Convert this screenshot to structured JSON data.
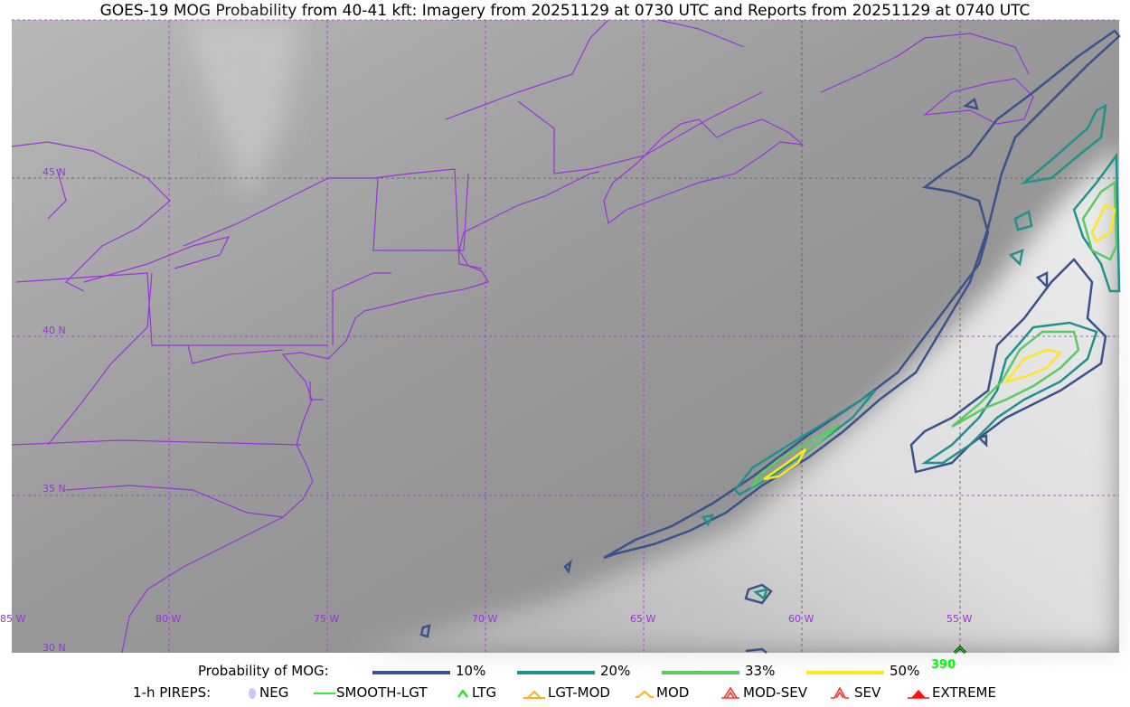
{
  "title": "GOES-19 MOG Probability from 40-41 kft: Imagery from 20251129 at 0730 UTC and Reports from 20251129 at 0740 UTC",
  "map": {
    "lat_labels": [
      "45 N",
      "40 N",
      "35 N",
      "30 N"
    ],
    "lon_labels": [
      "85 W",
      "80 W",
      "75 W",
      "70 W",
      "65 W",
      "60 W",
      "55 W"
    ],
    "border_color": "#9933dd",
    "report_value": "390",
    "report_icon": "ltg-caret-icon"
  },
  "legend": {
    "probability_label": "Probability of MOG:",
    "levels": [
      {
        "label": "10%",
        "color": "#3b528b"
      },
      {
        "label": "20%",
        "color": "#21918c"
      },
      {
        "label": "33%",
        "color": "#5ec962"
      },
      {
        "label": "50%",
        "color": "#fde725"
      }
    ],
    "pireps_label": "1-h PIREPS:",
    "pireps": [
      {
        "label": "NEG",
        "color": "#c8c8ff",
        "icon": "neg-icon"
      },
      {
        "label": "SMOOTH-LGT",
        "color": "#33ee33",
        "icon": "smooth-lgt-icon"
      },
      {
        "label": "LTG",
        "color": "#00ee00",
        "icon": "ltg-icon"
      },
      {
        "label": "LGT-MOD",
        "color": "#ffb020",
        "icon": "lgt-mod-icon"
      },
      {
        "label": "MOD",
        "color": "#ffb020",
        "icon": "mod-icon"
      },
      {
        "label": "MOD-SEV",
        "color": "#ff3030",
        "icon": "mod-sev-icon"
      },
      {
        "label": "SEV",
        "color": "#ff3030",
        "icon": "sev-icon"
      },
      {
        "label": "EXTREME",
        "color": "#ff1010",
        "icon": "extreme-icon"
      }
    ]
  }
}
